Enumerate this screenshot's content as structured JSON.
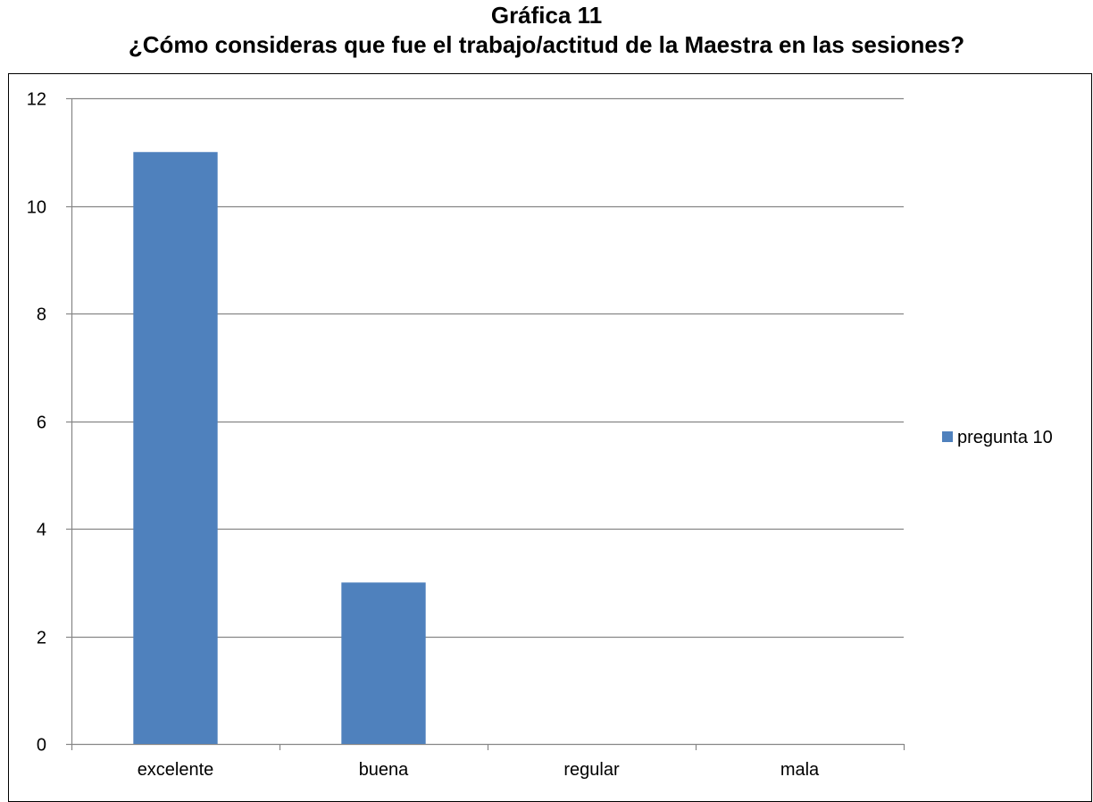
{
  "chart_data": {
    "type": "bar",
    "title": "Gráfica 11",
    "subtitle": "¿Cómo consideras que fue el trabajo/actitud de la Maestra en las sesiones?",
    "categories": [
      "excelente",
      "buena",
      "regular",
      "mala"
    ],
    "series": [
      {
        "name": "pregunta 10",
        "values": [
          11,
          3,
          0,
          0
        ],
        "color": "#4F81BD"
      }
    ],
    "ylim": [
      0,
      12
    ],
    "yticks": [
      0,
      2,
      4,
      6,
      8,
      10,
      12
    ],
    "grid": true,
    "legend_position": "right"
  }
}
